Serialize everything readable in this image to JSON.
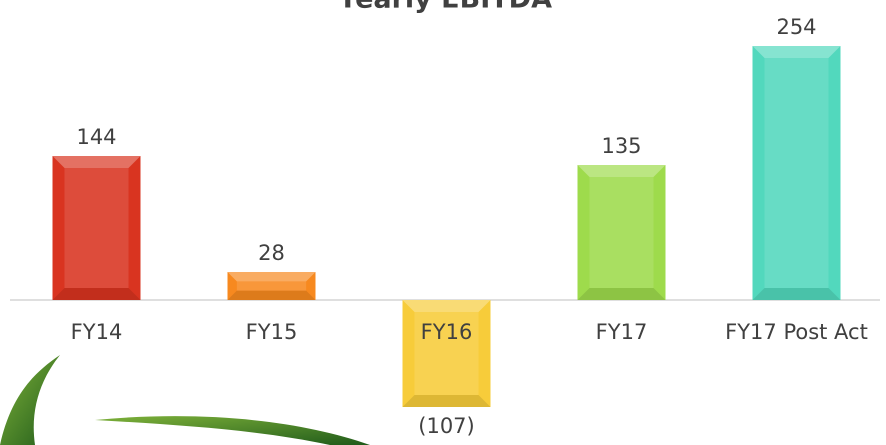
{
  "chart_data": {
    "type": "bar",
    "title": "Yearly EBITDA",
    "categories": [
      "FY14",
      "FY15",
      "FY16",
      "FY17",
      "FY17 Post Act"
    ],
    "values": [
      144,
      28,
      -107,
      135,
      254
    ],
    "value_labels": [
      "144",
      "28",
      "(107)",
      "135",
      "254"
    ],
    "colors": [
      "#d93420",
      "#f7891f",
      "#f7cc3a",
      "#9edb4c",
      "#52d8bd"
    ]
  }
}
